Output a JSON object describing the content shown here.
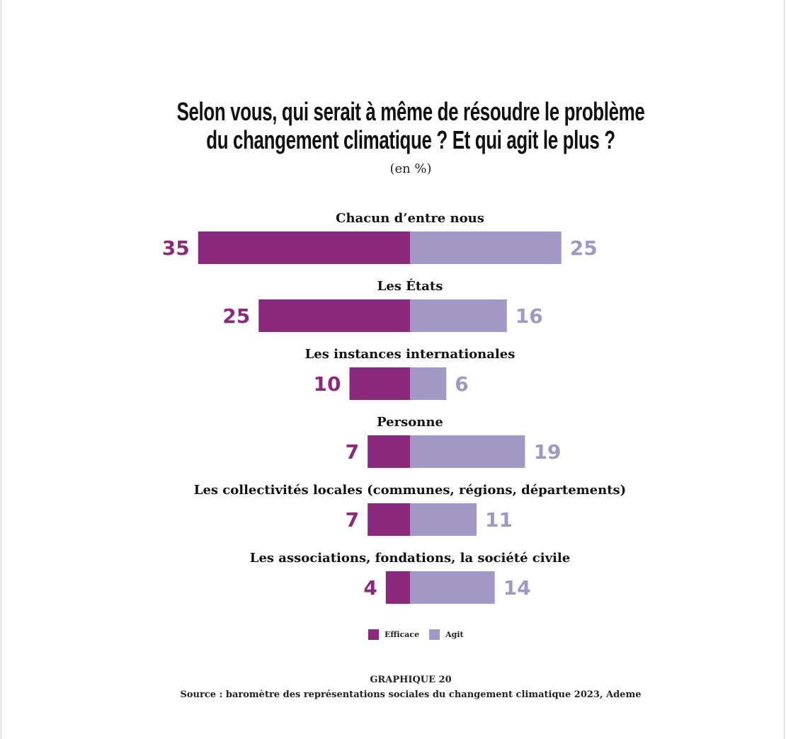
{
  "chart_data": {
    "type": "bar",
    "title": [
      "Selon vous, qui serait à même de résoudre le problème",
      "du changement climatique ? Et qui agit le plus ?"
    ],
    "subtitle": "(en %)",
    "categories": [
      "Chacun d’entre nous",
      "Les États",
      "Les instances internationales",
      "Personne",
      "Les collectivités locales (communes, régions, départements)",
      "Les associations, fondations, la société civile"
    ],
    "series": [
      {
        "name": "Efficace",
        "color": "#8b2a7c",
        "values": [
          35,
          25,
          10,
          7,
          7,
          4
        ]
      },
      {
        "name": "Agit",
        "color": "#a397c5",
        "values": [
          25,
          16,
          6,
          19,
          11,
          14
        ]
      }
    ],
    "legend_position": "bottom",
    "grid": false
  },
  "caption": {
    "label": "GRAPHIQUE 20",
    "source": "Source : baromètre des représentations sociales du changement climatique 2023, Ademe"
  }
}
